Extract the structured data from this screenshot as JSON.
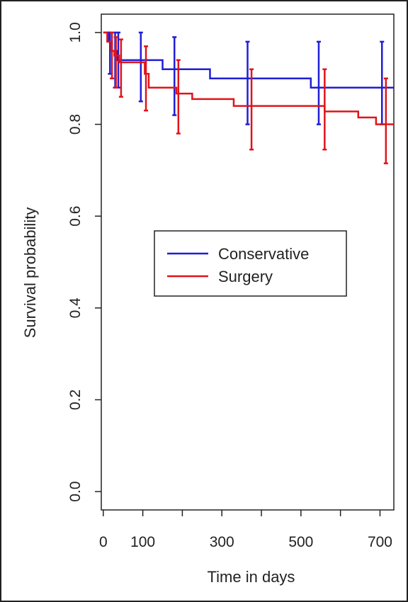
{
  "chart_data": {
    "type": "line",
    "subtype": "kaplan-meier step curve with error bars",
    "xlabel": "Time in days",
    "ylabel": "Survival probability",
    "xlim": [
      -5,
      735
    ],
    "ylim": [
      -0.04,
      1.04
    ],
    "x_ticks": [
      0,
      100,
      200,
      300,
      400,
      500,
      600,
      700
    ],
    "x_tick_labels": [
      "0",
      "100",
      "",
      "300",
      "",
      "500",
      "",
      "700"
    ],
    "y_ticks": [
      0.0,
      0.2,
      0.4,
      0.6,
      0.8,
      1.0
    ],
    "y_tick_labels": [
      "0.0",
      "0.2",
      "0.4",
      "0.6",
      "0.8",
      "1.0"
    ],
    "grid": false,
    "legend": {
      "position": "center",
      "entries": [
        "Conservative",
        "Surgery"
      ]
    },
    "series": [
      {
        "name": "Conservative",
        "color": "#1f1fd6",
        "steps": [
          [
            0,
            1.0
          ],
          [
            14,
            0.98
          ],
          [
            22,
            0.96
          ],
          [
            35,
            0.94
          ],
          [
            150,
            0.92
          ],
          [
            270,
            0.9
          ],
          [
            525,
            0.88
          ],
          [
            735,
            0.88
          ]
        ],
        "error_bars": [
          {
            "x": 17,
            "lower": 0.91,
            "upper": 1.0
          },
          {
            "x": 30,
            "lower": 0.88,
            "upper": 1.0
          },
          {
            "x": 38,
            "lower": 0.88,
            "upper": 1.0
          },
          {
            "x": 95,
            "lower": 0.85,
            "upper": 1.0
          },
          {
            "x": 180,
            "lower": 0.82,
            "upper": 0.99
          },
          {
            "x": 365,
            "lower": 0.8,
            "upper": 0.98
          },
          {
            "x": 545,
            "lower": 0.8,
            "upper": 0.98
          },
          {
            "x": 705,
            "lower": 0.8,
            "upper": 0.98
          }
        ]
      },
      {
        "name": "Surgery",
        "color": "#e0141a",
        "steps": [
          [
            0,
            1.0
          ],
          [
            10,
            0.98
          ],
          [
            20,
            0.96
          ],
          [
            28,
            0.95
          ],
          [
            40,
            0.935
          ],
          [
            105,
            0.91
          ],
          [
            115,
            0.88
          ],
          [
            185,
            0.867
          ],
          [
            225,
            0.855
          ],
          [
            330,
            0.84
          ],
          [
            560,
            0.828
          ],
          [
            645,
            0.815
          ],
          [
            690,
            0.8
          ],
          [
            735,
            0.8
          ]
        ],
        "error_bars": [
          {
            "x": 22,
            "lower": 0.9,
            "upper": 1.0
          },
          {
            "x": 32,
            "lower": 0.88,
            "upper": 0.99
          },
          {
            "x": 45,
            "lower": 0.86,
            "upper": 0.985
          },
          {
            "x": 108,
            "lower": 0.83,
            "upper": 0.97
          },
          {
            "x": 190,
            "lower": 0.78,
            "upper": 0.94
          },
          {
            "x": 375,
            "lower": 0.745,
            "upper": 0.92
          },
          {
            "x": 560,
            "lower": 0.745,
            "upper": 0.92
          },
          {
            "x": 715,
            "lower": 0.715,
            "upper": 0.9
          }
        ]
      }
    ]
  }
}
